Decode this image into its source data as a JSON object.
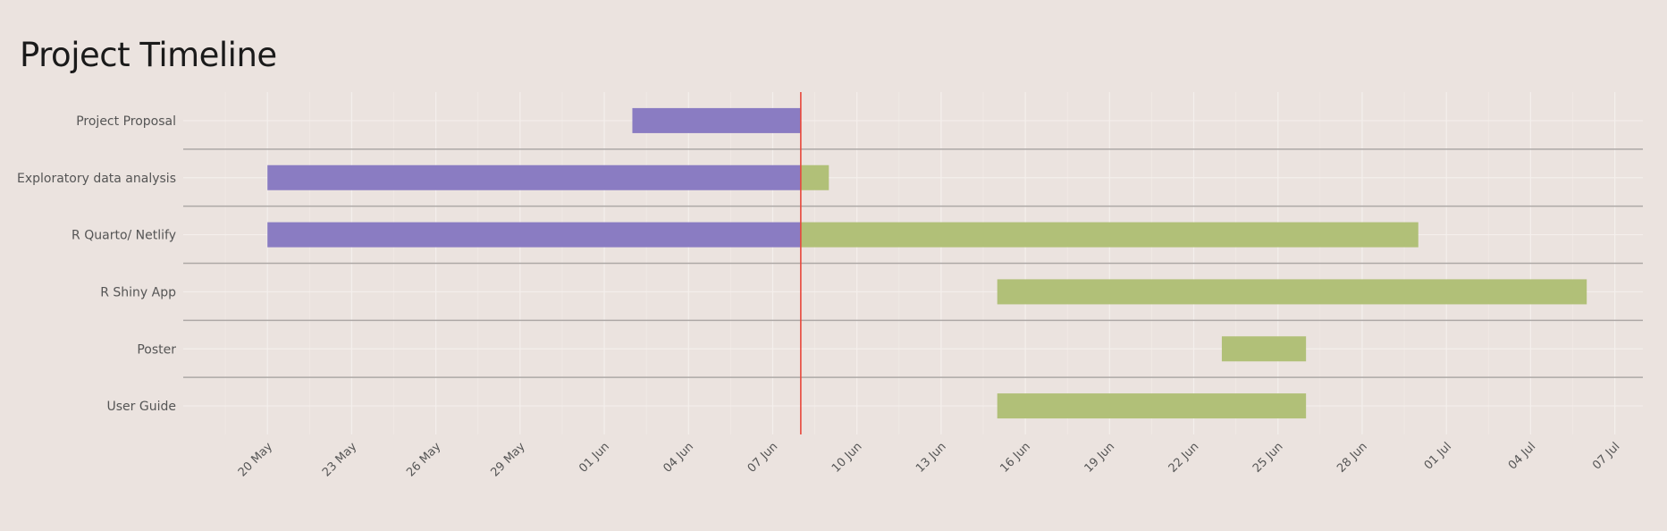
{
  "title": "Project Timeline",
  "chart_data": {
    "type": "gantt",
    "title": "Project Timeline",
    "xlabel": "",
    "ylabel": "",
    "today": "2024-06-08",
    "xlim": [
      "2024-05-17",
      "2024-07-08"
    ],
    "x_ticks": [
      "20 May",
      "23 May",
      "26 May",
      "29 May",
      "01 Jun",
      "04 Jun",
      "07 Jun",
      "10 Jun",
      "13 Jun",
      "16 Jun",
      "19 Jun",
      "22 Jun",
      "25 Jun",
      "28 Jun",
      "01 Jul",
      "04 Jul",
      "07 Jul"
    ],
    "x_tick_dates": [
      "2024-05-20",
      "2024-05-23",
      "2024-05-26",
      "2024-05-29",
      "2024-06-01",
      "2024-06-04",
      "2024-06-07",
      "2024-06-10",
      "2024-06-13",
      "2024-06-16",
      "2024-06-19",
      "2024-06-22",
      "2024-06-25",
      "2024-06-28",
      "2024-07-01",
      "2024-07-04",
      "2024-07-07"
    ],
    "grid": true,
    "colors": {
      "completed": "#8a7cc2",
      "remaining": "#b1c078",
      "today_line": "#e8473b"
    },
    "tasks": [
      {
        "name": "Project Proposal",
        "start": "2024-06-02",
        "end": "2024-06-08"
      },
      {
        "name": "Exploratory data analysis",
        "start": "2024-05-20",
        "end": "2024-06-09"
      },
      {
        "name": "R Quarto/ Netlify",
        "start": "2024-05-20",
        "end": "2024-06-30"
      },
      {
        "name": "R Shiny App",
        "start": "2024-06-15",
        "end": "2024-07-06"
      },
      {
        "name": "Poster",
        "start": "2024-06-23",
        "end": "2024-06-26"
      },
      {
        "name": "User Guide",
        "start": "2024-06-15",
        "end": "2024-06-26"
      }
    ]
  }
}
